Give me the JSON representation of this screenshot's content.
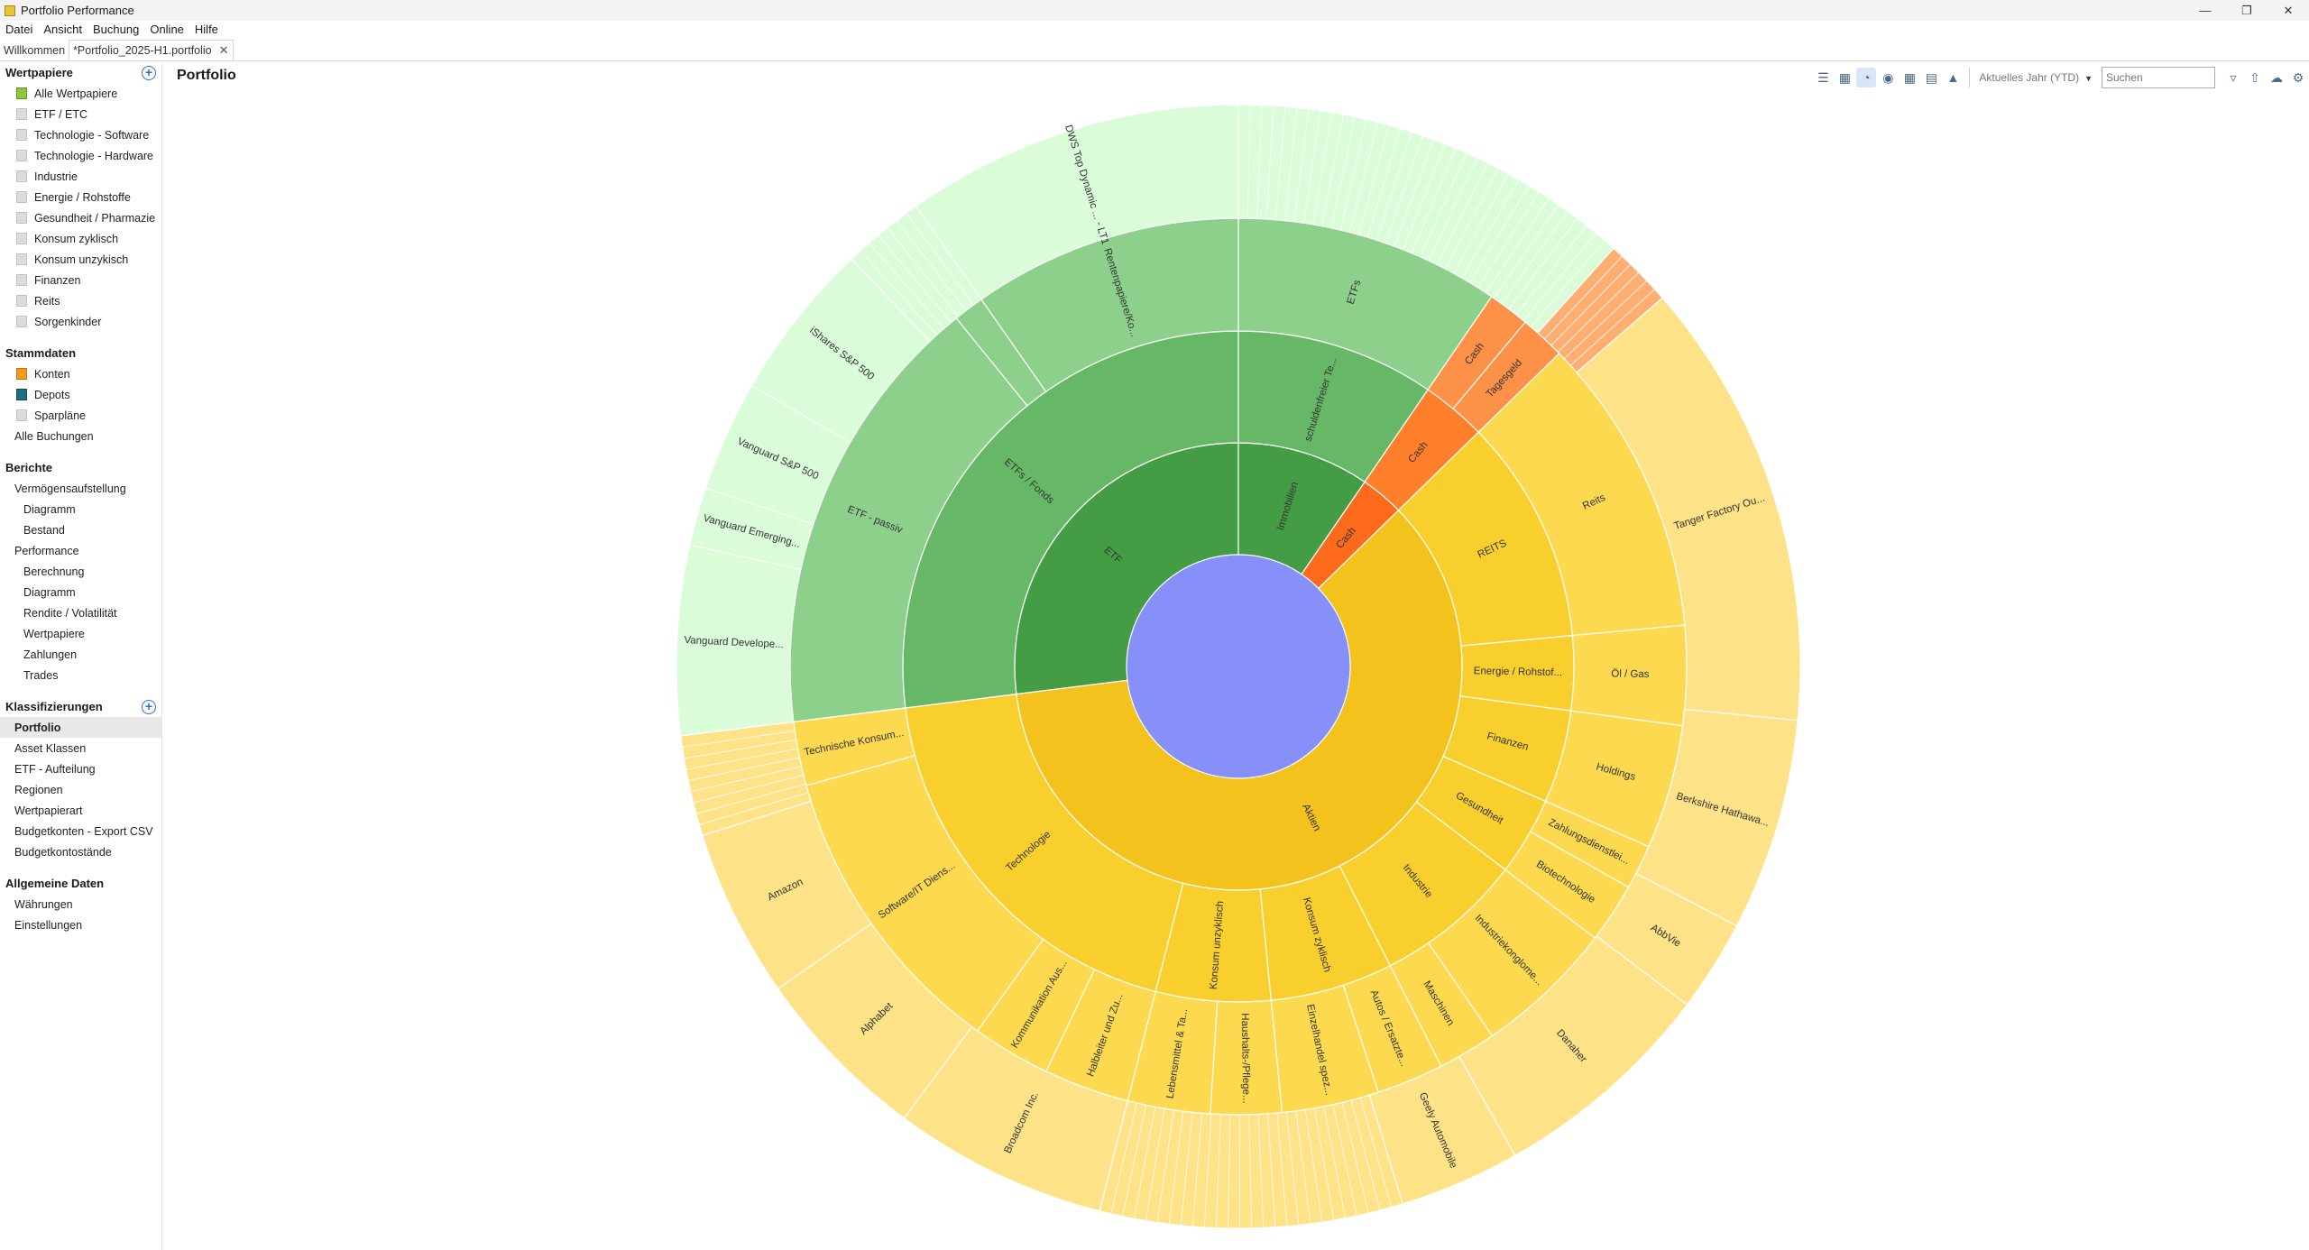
{
  "window": {
    "title": "Portfolio Performance"
  },
  "menu": [
    "Datei",
    "Ansicht",
    "Buchung",
    "Online",
    "Hilfe"
  ],
  "tabs": [
    {
      "label": "Willkommen"
    },
    {
      "label": "*Portfolio_2025-H1.portfolio"
    }
  ],
  "sidebar": {
    "wertpapiere_title": "Wertpapiere",
    "wertpapiere": [
      "Alle Wertpapiere",
      "ETF / ETC",
      "Technologie - Software",
      "Technologie - Hardware",
      "Industrie",
      "Energie / Rohstoffe",
      "Gesundheit / Pharmazie",
      "Konsum zyklisch",
      "Konsum unzykisch",
      "Finanzen",
      "Reits",
      "Sorgenkinder"
    ],
    "stammdaten_title": "Stammdaten",
    "stammdaten": [
      "Konten",
      "Depots",
      "Sparpläne",
      "Alle Buchungen"
    ],
    "berichte_title": "Berichte",
    "berichte": [
      "Vermögensaufstellung",
      "Diagramm",
      "Bestand",
      "Performance",
      "Berechnung",
      "Diagramm",
      "Rendite / Volatilität",
      "Wertpapiere",
      "Zahlungen",
      "Trades"
    ],
    "klassifizierungen_title": "Klassifizierungen",
    "klassifizierungen": [
      "Portfolio",
      "Asset Klassen",
      "ETF - Aufteilung",
      "Regionen",
      "Wertpapierart",
      "Budgetkonten - Export CSV",
      "Budgetkontostände"
    ],
    "allgemein_title": "Allgemeine Daten",
    "allgemein": [
      "Währungen",
      "Einstellungen"
    ]
  },
  "main": {
    "title": "Portfolio",
    "period": "Aktuelles Jahr (YTD)",
    "search_placeholder": "Suchen"
  },
  "chart_data": {
    "type": "sunburst",
    "unit": "degrees of a full circle (clockwise from top)",
    "colors": {
      "center": "#8790f8",
      "etf": [
        "#449d45",
        "#66b866",
        "#8cd08c",
        "#dafcd9"
      ],
      "cash": [
        "#fd6a1b",
        "#ff7f2a",
        "#fc9147",
        "#fdaf73"
      ],
      "aktien": [
        "#f3c21c",
        "#f9cf2e",
        "#fcd94f",
        "#fde287"
      ]
    },
    "rings": [
      {
        "name": "level1",
        "segments": [
          {
            "label": "ETF",
            "start": 262.9,
            "end": 360,
            "group": "etf"
          },
          {
            "label": "Immobilien",
            "start": 0,
            "end": 34.4,
            "group": "etf"
          },
          {
            "label": "Cash",
            "start": 34.4,
            "end": 45.7,
            "group": "cash"
          },
          {
            "label": "Aktien",
            "start": 45.7,
            "end": 262.9,
            "group": "aktien"
          }
        ]
      },
      {
        "name": "level2",
        "segments": [
          {
            "label": "ETFs / Fonds",
            "start": 262.9,
            "end": 360,
            "group": "etf"
          },
          {
            "label": "schuldenfreier Te...",
            "start": 0,
            "end": 34.4,
            "group": "etf"
          },
          {
            "label": "Cash",
            "start": 34.4,
            "end": 45.7,
            "group": "cash"
          },
          {
            "label": "REITS",
            "start": 45.7,
            "end": 84.7,
            "group": "aktien"
          },
          {
            "label": "Energie / Rohstof...",
            "start": 84.7,
            "end": 97.6,
            "group": "aktien"
          },
          {
            "label": "Finanzen",
            "start": 97.6,
            "end": 113.7,
            "group": "aktien"
          },
          {
            "label": "Gesundheit",
            "start": 113.7,
            "end": 127.3,
            "group": "aktien"
          },
          {
            "label": "Industrie",
            "start": 127.3,
            "end": 153.1,
            "group": "aktien"
          },
          {
            "label": "Konsum zyklisch",
            "start": 153.1,
            "end": 174.4,
            "group": "aktien"
          },
          {
            "label": "Konsum unzyklisch",
            "start": 174.4,
            "end": 194.3,
            "group": "aktien"
          },
          {
            "label": "Technologie",
            "start": 194.3,
            "end": 262.9,
            "group": "aktien"
          }
        ]
      },
      {
        "name": "level3",
        "segments": [
          {
            "label": "ETF - passiv",
            "start": 262.9,
            "end": 321.0,
            "group": "etf"
          },
          {
            "label": "",
            "start": 321.0,
            "end": 325.0,
            "group": "etf"
          },
          {
            "label": "Rentenpapiere/Ko...",
            "start": 325.0,
            "end": 360,
            "group": "etf"
          },
          {
            "label": "ETFs",
            "start": 0,
            "end": 34.4,
            "group": "etf"
          },
          {
            "label": "Cash",
            "start": 34.4,
            "end": 39.8,
            "group": "cash"
          },
          {
            "label": "Tagesgeld",
            "start": 39.8,
            "end": 45.7,
            "group": "cash"
          },
          {
            "label": "Reits",
            "start": 45.7,
            "end": 84.7,
            "group": "aktien"
          },
          {
            "label": "Öl / Gas",
            "start": 84.7,
            "end": 97.6,
            "group": "aktien"
          },
          {
            "label": "Holdings",
            "start": 97.6,
            "end": 113.7,
            "group": "aktien"
          },
          {
            "label": "Zahlungsdienstlei...",
            "start": 113.7,
            "end": 119.5,
            "group": "aktien"
          },
          {
            "label": "Biotechnologie",
            "start": 119.5,
            "end": 127.3,
            "group": "aktien"
          },
          {
            "label": "Industriekonglome...",
            "start": 127.3,
            "end": 145.5,
            "group": "aktien"
          },
          {
            "label": "Maschinen",
            "start": 145.5,
            "end": 153.1,
            "group": "aktien"
          },
          {
            "label": "Autos / Ersatzte...",
            "start": 153.1,
            "end": 161.8,
            "group": "aktien"
          },
          {
            "label": "Einzelhandel spez...",
            "start": 161.8,
            "end": 174.4,
            "group": "aktien"
          },
          {
            "label": "Haushalts-/Pflege...",
            "start": 174.4,
            "end": 183.6,
            "group": "aktien"
          },
          {
            "label": "Lebensmittel & Ta...",
            "start": 183.6,
            "end": 194.3,
            "group": "aktien"
          },
          {
            "label": "Halbleiter und Zu...",
            "start": 194.3,
            "end": 205.4,
            "group": "aktien"
          },
          {
            "label": "Kommunikation Aus...",
            "start": 205.4,
            "end": 215.6,
            "group": "aktien"
          },
          {
            "label": "Software/IT Diens...",
            "start": 215.6,
            "end": 254.6,
            "group": "aktien"
          },
          {
            "label": "Technische Konsum...",
            "start": 254.6,
            "end": 262.9,
            "group": "aktien"
          }
        ]
      },
      {
        "name": "level4",
        "segments": [
          {
            "label": "Vanguard Develope...",
            "start": 262.9,
            "end": 282.5,
            "group": "etf"
          },
          {
            "label": "Vanguard Emerging...",
            "start": 282.5,
            "end": 288.5,
            "group": "etf"
          },
          {
            "label": "Vanguard S&P 500",
            "start": 288.5,
            "end": 300.0,
            "group": "etf"
          },
          {
            "label": "iShares S&P 500",
            "start": 300.0,
            "end": 316.5,
            "group": "etf"
          },
          {
            "label": "",
            "start": 316.5,
            "end": 325.0,
            "group": "etf"
          },
          {
            "label": "DWS Top Dynamic ... - LT1",
            "start": 325.0,
            "end": 360,
            "group": "etf"
          },
          {
            "label": "",
            "start": 0,
            "end": 41.9,
            "group": "etf"
          },
          {
            "label": "",
            "start": 41.9,
            "end": 49.0,
            "group": "cash"
          },
          {
            "label": "Tanger Factory Ou...",
            "start": 49.0,
            "end": 95.5,
            "group": "aktien"
          },
          {
            "label": "Berkshire Hathawa...",
            "start": 95.5,
            "end": 117.5,
            "group": "aktien"
          },
          {
            "label": "AbbVie",
            "start": 117.5,
            "end": 127.0,
            "group": "aktien"
          },
          {
            "label": "Danaher",
            "start": 127.0,
            "end": 150.5,
            "group": "aktien"
          },
          {
            "label": "Geely Automobile",
            "start": 150.5,
            "end": 163.0,
            "group": "aktien"
          },
          {
            "label": "",
            "start": 163.0,
            "end": 194.3,
            "group": "aktien"
          },
          {
            "label": "Broadcom Inc.",
            "start": 194.3,
            "end": 216.5,
            "group": "aktien"
          },
          {
            "label": "Alphabet",
            "start": 216.5,
            "end": 235.0,
            "group": "aktien"
          },
          {
            "label": "Amazon",
            "start": 235.0,
            "end": 252.5,
            "group": "aktien"
          },
          {
            "label": "",
            "start": 252.5,
            "end": 262.9,
            "group": "aktien"
          }
        ]
      }
    ]
  }
}
